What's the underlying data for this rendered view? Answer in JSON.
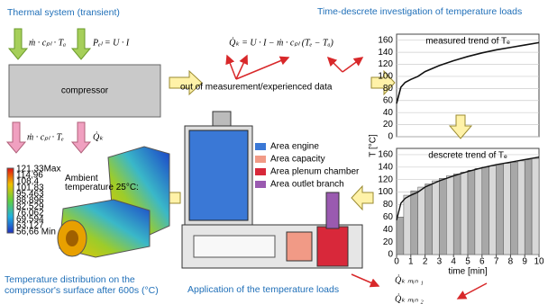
{
  "left": {
    "title": "Thermal system (transient)",
    "inputs": [
      "ṁ · cₚₗ · Tₐ",
      "Pₑₗ = U · I"
    ],
    "box": "compressor",
    "outputs": [
      "ṁ · cₚₗ · Tₑ",
      "Q̇ₖ"
    ]
  },
  "formula": {
    "text": "Q̇ₖ = U · I − ṁ · cₚₗ (Tₑ − Tₐ)",
    "note": "out of measurement/experienced data"
  },
  "charts_title": "Time-descrete investigation of temperature loads",
  "measured": {
    "title": "measured trend of Tₑ",
    "x": [
      0,
      0.3,
      0.6,
      1,
      1.5,
      2,
      3,
      4,
      5,
      6,
      7,
      8,
      9,
      10
    ],
    "values": [
      55,
      82,
      90,
      95,
      100,
      108,
      118,
      126,
      133,
      139,
      144,
      148,
      152,
      156
    ],
    "xlim": [
      0,
      10
    ],
    "ylim": [
      0,
      170
    ],
    "yticks": [
      0,
      20,
      40,
      60,
      80,
      100,
      120,
      140,
      160
    ]
  },
  "discrete": {
    "title": "descrete trend of Tₑ",
    "bins": [
      0,
      0.5,
      1,
      1.5,
      2,
      2.5,
      3,
      3.5,
      4,
      4.5,
      5,
      5.5,
      6,
      6.5,
      7,
      7.5,
      8,
      8.5,
      9,
      9.5,
      10
    ],
    "values": [
      60,
      95,
      102,
      108,
      113,
      118,
      122,
      126,
      129,
      132,
      135,
      138,
      140,
      142,
      144,
      146,
      148,
      150,
      152,
      154
    ],
    "xlim": [
      0,
      10
    ],
    "ylim": [
      0,
      170
    ],
    "yticks": [
      0,
      20,
      40,
      60,
      80,
      100,
      120,
      140,
      160
    ],
    "xticks": [
      0,
      1,
      2,
      3,
      4,
      5,
      6,
      7,
      8,
      9,
      10
    ],
    "xlabel": "time [min]"
  },
  "ylabel": "T [°C]",
  "legend": [
    {
      "name": "Area engine",
      "color": "#3a78d6"
    },
    {
      "name": "Area capacity",
      "color": "#f19a86"
    },
    {
      "name": "Area plenum chamber",
      "color": "#d8283a"
    },
    {
      "name": "Area outlet branch",
      "color": "#9a5ab0"
    }
  ],
  "fem": {
    "ambient": "Ambient temperature 25°C:",
    "scale": [
      "121,33Max",
      "114,96",
      "108,4",
      "101,83",
      "95,463",
      "88,896",
      "82,529",
      "76,062",
      "69,594",
      "63,127",
      "56,66 Min"
    ],
    "caption": [
      "Temperature distribution on the",
      "compressor's surface after 600s (°C)"
    ]
  },
  "application": "Application of the temperature loads",
  "loads": [
    "Q̇ₖ ₘᵢₙ ₁",
    "Q̇ₖ ₘᵢₙ ₂"
  ]
}
